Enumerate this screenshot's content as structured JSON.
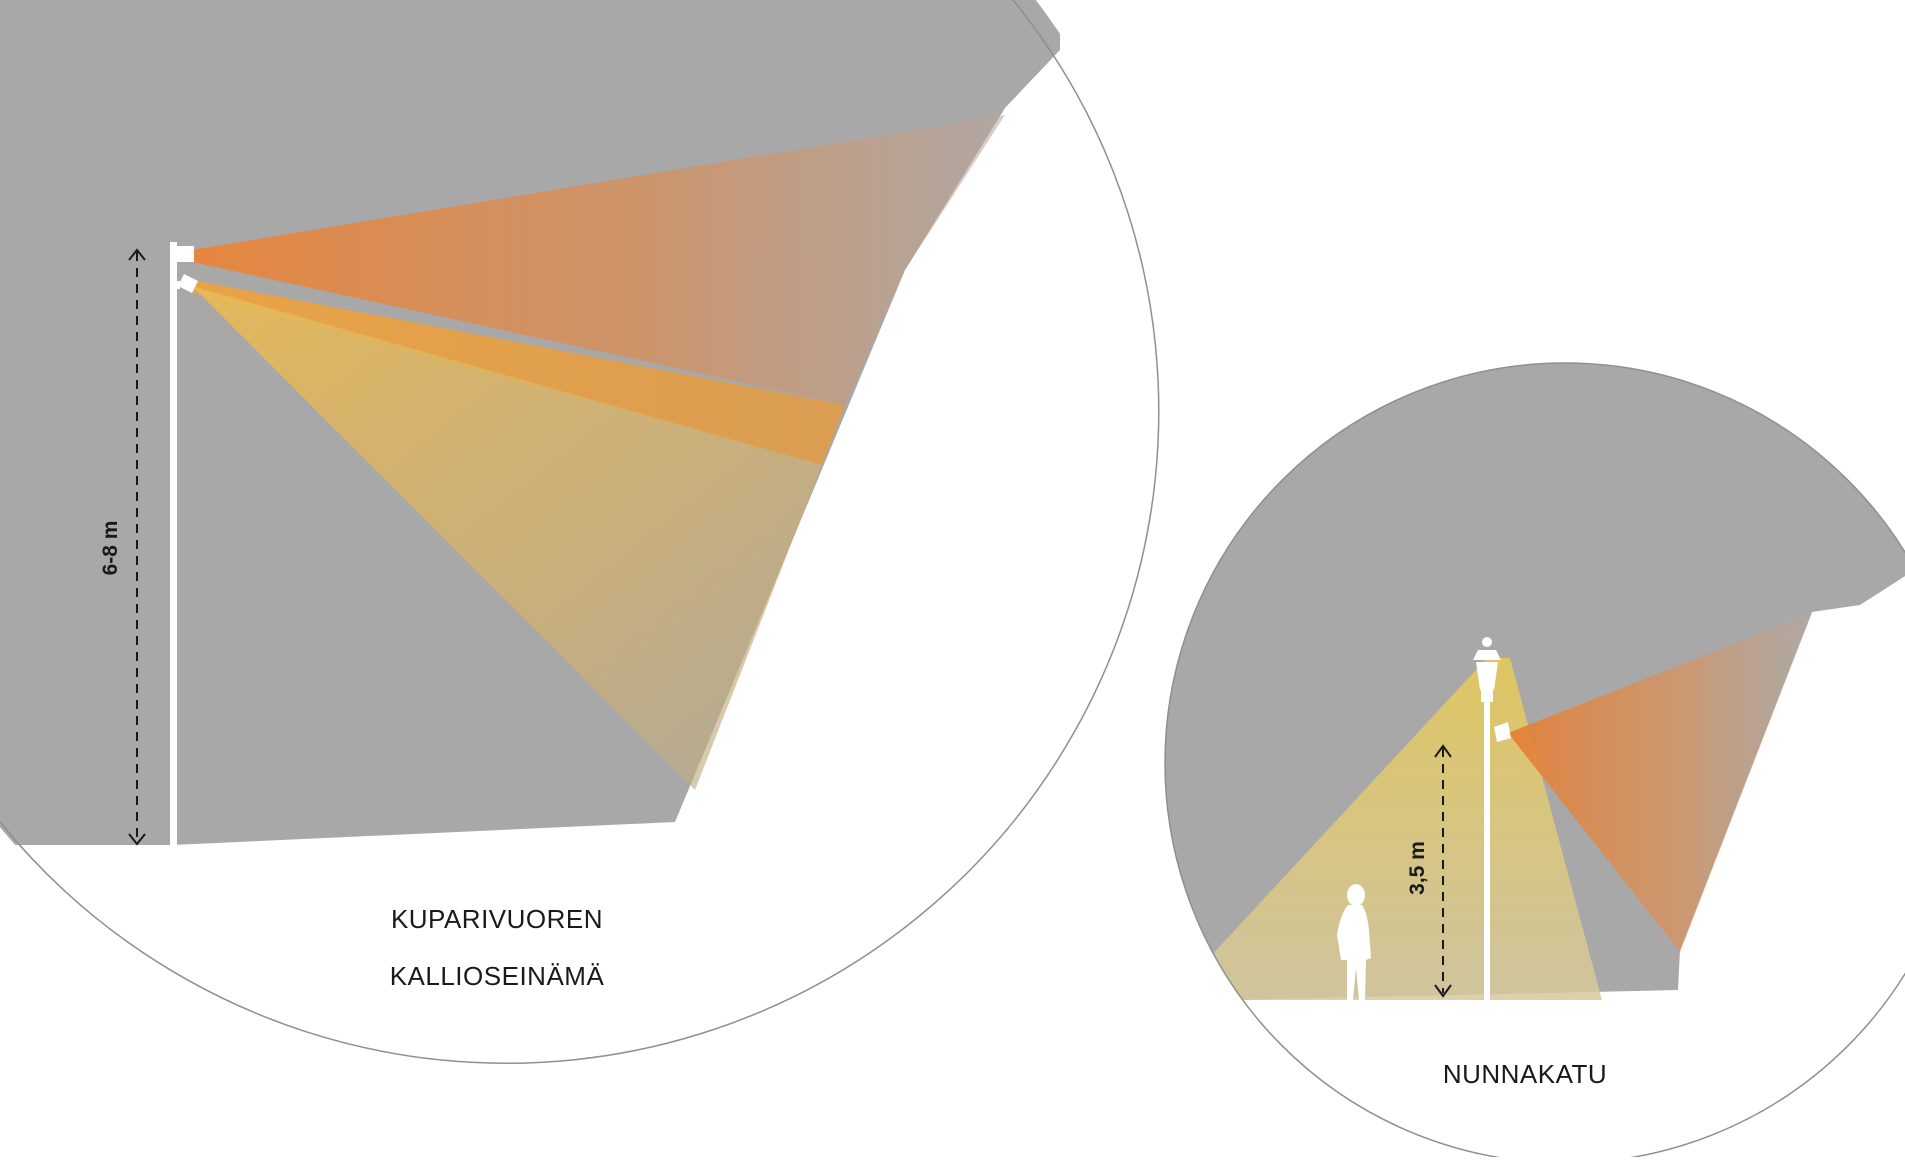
{
  "colors": {
    "background": "#ffffff",
    "terrain": "#a8a8a8",
    "circle_outline": "#8f8f8f",
    "beam_orange": "#e58a3a",
    "beam_amber": "#eea33a",
    "beam_yellow": "#e3c463",
    "fixture": "#ffffff",
    "dimension_line": "#1a1a1a"
  },
  "views": {
    "cliff": {
      "title_line1": "KUPARIVUOREN",
      "title_line2": "KALLIOSEINÄMÄ",
      "height_label": "6-8 m",
      "icons": [
        "floodlight-icon",
        "pole-icon",
        "double-arrow-icon"
      ]
    },
    "street": {
      "title": "NUNNAKATU",
      "height_label": "3,5 m",
      "icons": [
        "lantern-icon",
        "floodlight-icon",
        "person-silhouette-icon",
        "double-arrow-icon"
      ]
    }
  }
}
